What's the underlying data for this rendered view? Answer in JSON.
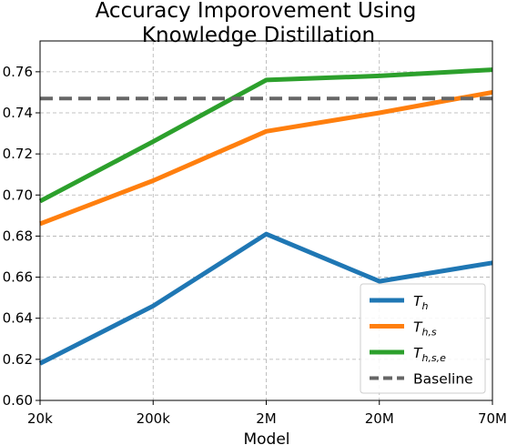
{
  "chart_data": {
    "type": "line",
    "title": [
      "Accuracy Imporovement Using",
      "Knowledge Distillation"
    ],
    "xlabel": "Model",
    "ylabel": "",
    "categories": [
      "20k",
      "200k",
      "2M",
      "20M",
      "70M"
    ],
    "ylim": [
      0.6,
      0.775
    ],
    "yticks": [
      0.6,
      0.62,
      0.64,
      0.66,
      0.68,
      0.7,
      0.72,
      0.74,
      0.76
    ],
    "grid": true,
    "legend_position": "lower-right",
    "series": [
      {
        "name": "T_h",
        "label_main": "T",
        "label_sub": "h",
        "color": "#1f77b4",
        "style": "solid",
        "values": [
          0.618,
          0.646,
          0.681,
          0.658,
          0.667
        ]
      },
      {
        "name": "T_h,s",
        "label_main": "T",
        "label_sub": "h,s",
        "color": "#ff7f0e",
        "style": "solid",
        "values": [
          0.686,
          0.707,
          0.731,
          0.74,
          0.75
        ]
      },
      {
        "name": "T_h,s,e",
        "label_main": "T",
        "label_sub": "h,s,e",
        "color": "#2ca02c",
        "style": "solid",
        "values": [
          0.697,
          0.726,
          0.756,
          0.758,
          0.761
        ]
      },
      {
        "name": "Baseline",
        "label_main": "Baseline",
        "label_sub": "",
        "color": "#666666",
        "style": "dashed",
        "values": [
          0.747,
          0.747,
          0.747,
          0.747,
          0.747
        ]
      }
    ]
  }
}
